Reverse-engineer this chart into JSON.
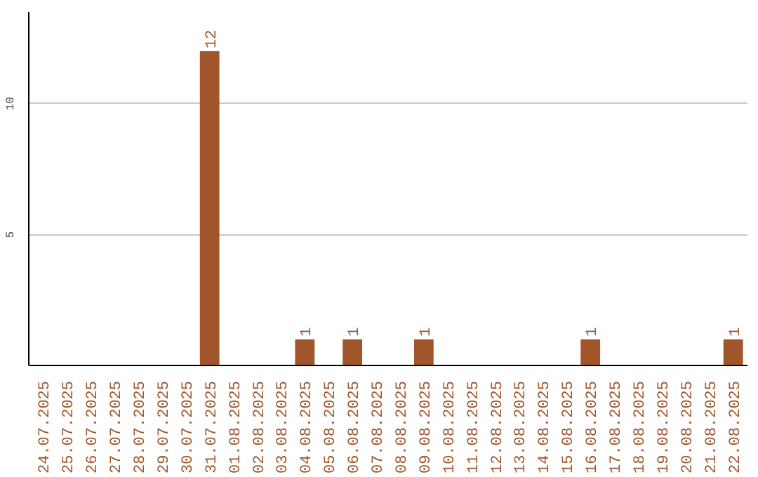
{
  "chart_data": {
    "type": "bar",
    "categories": [
      "24.07.2025",
      "25.07.2025",
      "26.07.2025",
      "27.07.2025",
      "28.07.2025",
      "29.07.2025",
      "30.07.2025",
      "31.07.2025",
      "01.08.2025",
      "02.08.2025",
      "03.08.2025",
      "04.08.2025",
      "05.08.2025",
      "06.08.2025",
      "07.08.2025",
      "08.08.2025",
      "09.08.2025",
      "10.08.2025",
      "11.08.2025",
      "12.08.2025",
      "13.08.2025",
      "14.08.2025",
      "15.08.2025",
      "16.08.2025",
      "17.08.2025",
      "18.08.2025",
      "19.08.2025",
      "20.08.2025",
      "21.08.2025",
      "22.08.2025"
    ],
    "values": [
      0,
      0,
      0,
      0,
      0,
      0,
      0,
      12,
      0,
      0,
      0,
      1,
      0,
      1,
      0,
      0,
      1,
      0,
      0,
      0,
      0,
      0,
      0,
      1,
      0,
      0,
      0,
      0,
      0,
      1
    ],
    "value_labels": [
      null,
      null,
      null,
      null,
      null,
      null,
      null,
      "12",
      null,
      null,
      null,
      "1",
      null,
      "1",
      null,
      null,
      "1",
      null,
      null,
      null,
      null,
      null,
      null,
      "1",
      null,
      null,
      null,
      null,
      null,
      "1"
    ],
    "color": "#a0562a",
    "ylim": [
      0,
      13.5
    ],
    "yticks": [
      5,
      10
    ],
    "grid": "y"
  }
}
